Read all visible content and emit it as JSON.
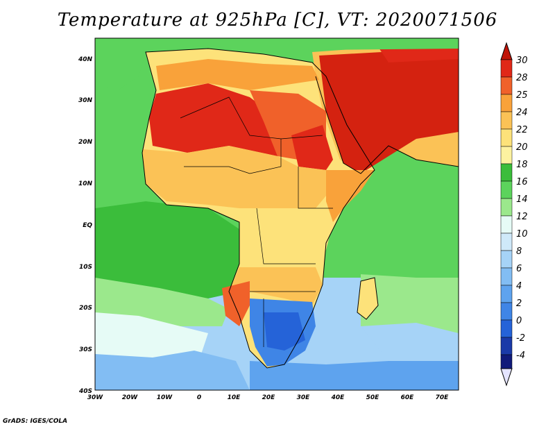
{
  "title": "Temperature at 925hPa [C], VT: 2020071506",
  "credit": "GrADS: IGES/COLA",
  "map": {
    "region": "Africa and surrounding oceans",
    "lon_labels": [
      "30W",
      "20W",
      "10W",
      "0",
      "10E",
      "20E",
      "30E",
      "40E",
      "50E",
      "60E",
      "70E"
    ],
    "lat_labels": [
      "40N",
      "30N",
      "20N",
      "10N",
      "EQ",
      "10S",
      "20S",
      "30S",
      "40S"
    ],
    "lon_range": [
      -30,
      75
    ],
    "lat_range": [
      -40,
      45
    ]
  },
  "colorbar": {
    "labels": [
      "30",
      "28",
      "25",
      "24",
      "22",
      "20",
      "18",
      "16",
      "14",
      "12",
      "10",
      "8",
      "6",
      "4",
      "2",
      "0",
      "-2",
      "-4"
    ],
    "colors": {
      "c_m4": "#e4e4ff",
      "c_lt_m4": "#101a7a",
      "c_m2": "#1a3aa8",
      "c_0": "#2563d8",
      "c_2": "#3f85e6",
      "c_4": "#5ea3ee",
      "c_6": "#82bdf3",
      "c_8": "#a6d3f7",
      "c_10": "#cfe9f9",
      "c_12": "#e6fbf6",
      "c_14": "#9be88c",
      "c_16": "#5cd35c",
      "c_18": "#3bbd3b",
      "c_20": "#fdf2a0",
      "c_22": "#fde27a",
      "c_24": "#fbc256",
      "c_25": "#f9a23a",
      "c_28": "#f0612a",
      "c_30": "#e02818",
      "c_top": "#c01408"
    }
  }
}
